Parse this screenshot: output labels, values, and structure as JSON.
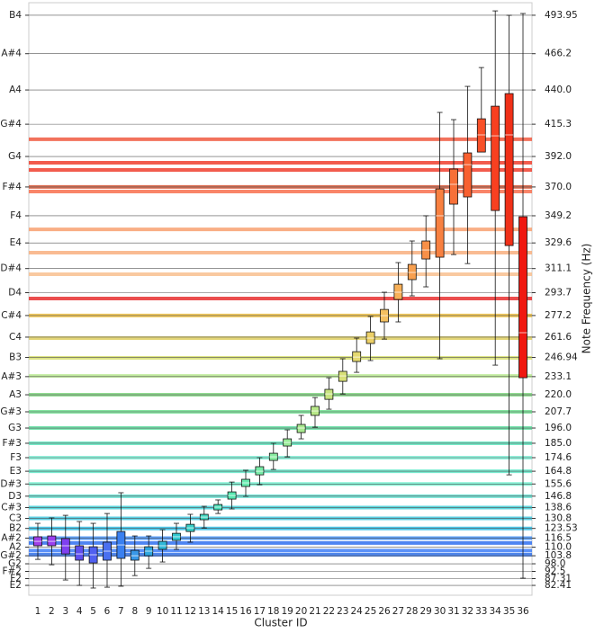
{
  "chart_data": {
    "type": "box",
    "x_label": "Cluster ID",
    "y2_label": "Note Frequency (Hz)",
    "categories": [
      "1",
      "2",
      "3",
      "4",
      "5",
      "6",
      "7",
      "8",
      "9",
      "10",
      "11",
      "12",
      "13",
      "14",
      "15",
      "16",
      "17",
      "18",
      "19",
      "20",
      "21",
      "22",
      "23",
      "24",
      "25",
      "26",
      "27",
      "28",
      "29",
      "30",
      "31",
      "32",
      "33",
      "34",
      "35",
      "36"
    ],
    "boxes": [
      {
        "low": 101.2,
        "q1": 111.0,
        "median": 114.2,
        "q3": 117.5,
        "high": 127.2,
        "color": "#a040e8"
      },
      {
        "low": 97.3,
        "q1": 111.0,
        "median": 114.2,
        "q3": 118.1,
        "high": 131.1,
        "color": "#9a3ff0"
      },
      {
        "low": 86.3,
        "q1": 105.1,
        "median": 111.0,
        "q3": 116.2,
        "high": 133.0,
        "color": "#8040f0"
      },
      {
        "low": 82.4,
        "q1": 100.6,
        "median": 105.1,
        "q3": 111.0,
        "high": 128.5,
        "color": "#6050f0"
      },
      {
        "low": 80.5,
        "q1": 98.6,
        "median": 104.5,
        "q3": 110.3,
        "high": 127.2,
        "color": "#5060f0"
      },
      {
        "low": 81.1,
        "q1": 100.6,
        "median": 107.1,
        "q3": 113.6,
        "high": 134.3,
        "color": "#4a70f0"
      },
      {
        "low": 81.8,
        "q1": 101.9,
        "median": 111.6,
        "q3": 121.3,
        "high": 149.3,
        "color": "#3a80f0"
      },
      {
        "low": 89.5,
        "q1": 100.6,
        "median": 103.8,
        "q3": 107.7,
        "high": 118.1,
        "color": "#3898e8"
      },
      {
        "low": 94.7,
        "q1": 103.8,
        "median": 107.1,
        "q3": 110.3,
        "high": 118.1,
        "color": "#30a8e0"
      },
      {
        "low": 99.3,
        "q1": 108.4,
        "median": 111.0,
        "q3": 114.2,
        "high": 122.6,
        "color": "#30b8d8"
      },
      {
        "low": 108.4,
        "q1": 114.9,
        "median": 117.5,
        "q3": 120.0,
        "high": 127.2,
        "color": "#30c8d0"
      },
      {
        "low": 113.6,
        "q1": 121.3,
        "median": 123.9,
        "q3": 126.5,
        "high": 133.7,
        "color": "#38d0c8"
      },
      {
        "low": 123.9,
        "q1": 129.8,
        "median": 131.7,
        "q3": 133.7,
        "high": 139.5,
        "color": "#40d8c0"
      },
      {
        "low": 134.3,
        "q1": 136.9,
        "median": 138.9,
        "q3": 140.8,
        "high": 144.1,
        "color": "#48e0b8"
      },
      {
        "low": 137.6,
        "q1": 144.7,
        "median": 147.3,
        "q3": 149.9,
        "high": 157.0,
        "color": "#58e8b0"
      },
      {
        "low": 146.7,
        "q1": 153.8,
        "median": 156.4,
        "q3": 159.0,
        "high": 165.5,
        "color": "#68ecb0"
      },
      {
        "low": 155.1,
        "q1": 162.2,
        "median": 164.8,
        "q3": 168.1,
        "high": 174.6,
        "color": "#78eca8"
      },
      {
        "low": 166.1,
        "q1": 172.6,
        "median": 175.2,
        "q3": 177.8,
        "high": 185.0,
        "color": "#88eca0"
      },
      {
        "low": 175.2,
        "q1": 183.0,
        "median": 185.6,
        "q3": 188.2,
        "high": 194.7,
        "color": "#98ec98"
      },
      {
        "low": 188.2,
        "q1": 192.7,
        "median": 196.0,
        "q3": 198.6,
        "high": 205.1,
        "color": "#a8e890"
      },
      {
        "low": 196.6,
        "q1": 205.1,
        "median": 208.3,
        "q3": 211.6,
        "high": 218.0,
        "color": "#b8e888"
      },
      {
        "low": 209.6,
        "q1": 216.7,
        "median": 220.6,
        "q3": 223.9,
        "high": 232.3,
        "color": "#c8e480"
      },
      {
        "low": 220.6,
        "q1": 229.7,
        "median": 233.6,
        "q3": 236.9,
        "high": 246.0,
        "color": "#d8e078"
      },
      {
        "low": 236.2,
        "q1": 244.0,
        "median": 247.2,
        "q3": 251.1,
        "high": 260.9,
        "color": "#e4d870"
      },
      {
        "low": 244.7,
        "q1": 257.0,
        "median": 260.9,
        "q3": 265.4,
        "high": 276.5,
        "color": "#ecd068"
      },
      {
        "low": 260.2,
        "q1": 272.6,
        "median": 277.1,
        "q3": 281.6,
        "high": 294.0,
        "color": "#f4c060"
      },
      {
        "low": 272.6,
        "q1": 288.8,
        "median": 294.0,
        "q3": 299.8,
        "high": 315.4,
        "color": "#f8b058"
      },
      {
        "low": 291.4,
        "q1": 303.1,
        "median": 308.3,
        "q3": 314.1,
        "high": 331.0,
        "color": "#f8a050"
      },
      {
        "low": 297.9,
        "q1": 318.0,
        "median": 324.5,
        "q3": 331.0,
        "high": 349.2,
        "color": "#f89048"
      },
      {
        "low": 246.0,
        "q1": 319.3,
        "median": 349.2,
        "q3": 368.6,
        "high": 423.8,
        "color": "#f88040"
      },
      {
        "low": 321.2,
        "q1": 357.6,
        "median": 371.9,
        "q3": 382.9,
        "high": 418.6,
        "color": "#f87038"
      },
      {
        "low": 314.7,
        "q1": 362.8,
        "median": 386.1,
        "q3": 394.6,
        "high": 442.6,
        "color": "#f86030"
      },
      {
        "low": 395.2,
        "q1": 395.2,
        "median": 407.6,
        "q3": 419.2,
        "high": 456.2,
        "color": "#f85028"
      },
      {
        "low": 241.4,
        "q1": 353.0,
        "median": 406.9,
        "q3": 428.3,
        "high": 497.1,
        "color": "#f84020"
      },
      {
        "low": 162.2,
        "q1": 327.7,
        "median": 407.6,
        "q3": 437.4,
        "high": 493.9,
        "color": "#f03018"
      },
      {
        "low": 87.6,
        "q1": 232.3,
        "median": 264.8,
        "q3": 348.5,
        "high": 495.2,
        "color": "#f01810"
      }
    ],
    "reference_lines": [
      {
        "value": 404.4,
        "color": "#f05a40"
      },
      {
        "value": 387.5,
        "color": "#f04030"
      },
      {
        "value": 382.3,
        "color": "#f04030"
      },
      {
        "value": 370.0,
        "color": "#d85838"
      },
      {
        "value": 366.7,
        "color": "#f87050"
      },
      {
        "value": 339.4,
        "color": "#f8a070"
      },
      {
        "value": 322.6,
        "color": "#f8b080"
      },
      {
        "value": 307.0,
        "color": "#f8c090"
      },
      {
        "value": 289.5,
        "color": "#e83030"
      },
      {
        "value": 277.2,
        "color": "#f0c040"
      },
      {
        "value": 260.9,
        "color": "#e0d060"
      },
      {
        "value": 246.6,
        "color": "#d8e070"
      },
      {
        "value": 233.6,
        "color": "#b8e890"
      },
      {
        "value": 220.0,
        "color": "#80d880"
      },
      {
        "value": 207.7,
        "color": "#70e090"
      },
      {
        "value": 196.0,
        "color": "#60e0a0"
      },
      {
        "value": 185.0,
        "color": "#60e8c0"
      },
      {
        "value": 174.6,
        "color": "#80f0d8"
      },
      {
        "value": 164.8,
        "color": "#60e8c8"
      },
      {
        "value": 155.6,
        "color": "#70f0d0"
      },
      {
        "value": 146.8,
        "color": "#60e0d0"
      },
      {
        "value": 138.6,
        "color": "#40d0d8"
      },
      {
        "value": 130.8,
        "color": "#40c8e0"
      },
      {
        "value": 123.5,
        "color": "#30c0e8"
      },
      {
        "value": 116.5,
        "color": "#4090f8"
      },
      {
        "value": 113.0,
        "color": "#3070f0"
      },
      {
        "value": 107.5,
        "color": "#4080f8"
      },
      {
        "value": 104.5,
        "color": "#3070e8"
      }
    ],
    "ylim": [
      75.3,
      503.0
    ],
    "y2lim": [
      75.3,
      503.0
    ],
    "grid": true,
    "yticks": [
      {
        "value": 493.95,
        "label": "B4"
      },
      {
        "value": 466.2,
        "label": "A#4"
      },
      {
        "value": 440.0,
        "label": "A4"
      },
      {
        "value": 415.3,
        "label": "G#4"
      },
      {
        "value": 392.0,
        "label": "G4"
      },
      {
        "value": 370.0,
        "label": "F#4"
      },
      {
        "value": 349.2,
        "label": "F4"
      },
      {
        "value": 329.6,
        "label": "E4"
      },
      {
        "value": 311.1,
        "label": "D#4"
      },
      {
        "value": 293.7,
        "label": "D4"
      },
      {
        "value": 277.2,
        "label": "C#4"
      },
      {
        "value": 261.6,
        "label": "C4"
      },
      {
        "value": 246.94,
        "label": "B3"
      },
      {
        "value": 233.1,
        "label": "A#3"
      },
      {
        "value": 220.0,
        "label": "A3"
      },
      {
        "value": 207.7,
        "label": "G#3"
      },
      {
        "value": 196.0,
        "label": "G3"
      },
      {
        "value": 185.0,
        "label": "F#3"
      },
      {
        "value": 174.6,
        "label": "F3"
      },
      {
        "value": 164.8,
        "label": "E3"
      },
      {
        "value": 155.6,
        "label": "D#3"
      },
      {
        "value": 146.8,
        "label": "D3"
      },
      {
        "value": 138.6,
        "label": "C#3"
      },
      {
        "value": 130.8,
        "label": "C3"
      },
      {
        "value": 123.53,
        "label": "B2"
      },
      {
        "value": 116.5,
        "label": "A#2"
      },
      {
        "value": 110.0,
        "label": "A2"
      },
      {
        "value": 103.8,
        "label": "G#2"
      },
      {
        "value": 98.0,
        "label": "G2"
      },
      {
        "value": 92.5,
        "label": "F#2"
      },
      {
        "value": 87.31,
        "label": "F2"
      },
      {
        "value": 82.41,
        "label": "E2"
      }
    ],
    "y2ticks": [
      493.95,
      466.2,
      {
        "value": 440,
        "label": "440.0"
      },
      415.3,
      {
        "value": 392,
        "label": "392.0"
      },
      {
        "value": 370,
        "label": "370.0"
      },
      349.2,
      329.6,
      311.1,
      293.7,
      277.2,
      261.6,
      246.94,
      233.1,
      {
        "value": 220,
        "label": "220.0"
      },
      207.7,
      {
        "value": 196,
        "label": "196.0"
      },
      {
        "value": 185,
        "label": "185.0"
      },
      174.6,
      164.8,
      155.6,
      146.8,
      138.6,
      130.8,
      123.53,
      116.5,
      {
        "value": 110,
        "label": "110.0"
      },
      103.8,
      {
        "value": 98,
        "label": "98.0"
      },
      92.5,
      87.31,
      82.41
    ]
  }
}
